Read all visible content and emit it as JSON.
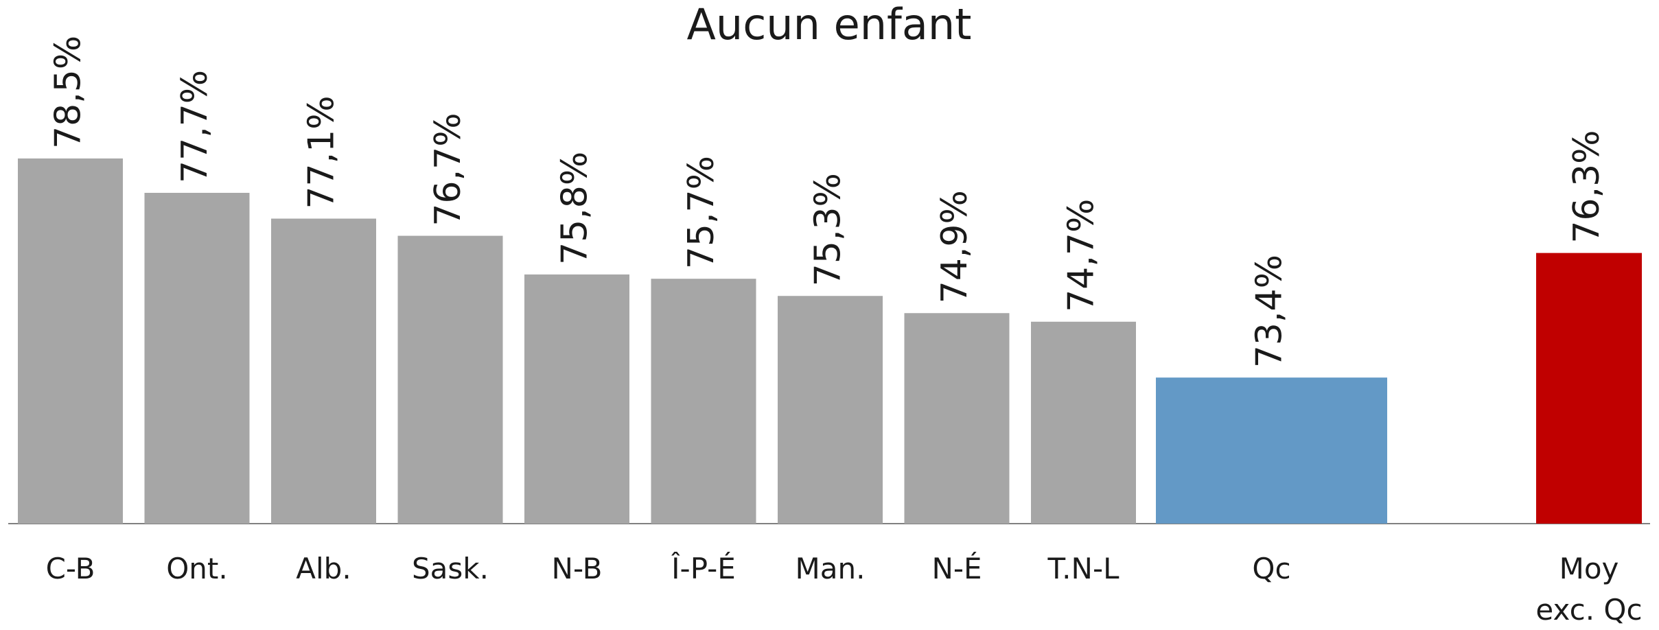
{
  "chart_data": {
    "type": "bar",
    "title": "Aucun enfant",
    "categories": [
      "C-B",
      "Ont.",
      "Alb.",
      "Sask.",
      "N-B",
      "Î-P-É",
      "Man.",
      "N-É",
      "T.N-L",
      "Qc",
      "Moy exc. Qc"
    ],
    "values": [
      78.5,
      77.7,
      77.1,
      76.7,
      75.8,
      75.7,
      75.3,
      74.9,
      74.7,
      73.4,
      76.3
    ],
    "value_labels": [
      "78,5%",
      "77,7%",
      "77,1%",
      "76,7%",
      "75,8%",
      "75,7%",
      "75,3%",
      "74,9%",
      "74,7%",
      "73,4%",
      "76,3%"
    ],
    "colors": [
      "#a6a6a6",
      "#a6a6a6",
      "#a6a6a6",
      "#a6a6a6",
      "#a6a6a6",
      "#a6a6a6",
      "#a6a6a6",
      "#a6a6a6",
      "#a6a6a6",
      "#6399c6",
      "#c00000"
    ],
    "ylim": [
      70,
      80
    ]
  }
}
